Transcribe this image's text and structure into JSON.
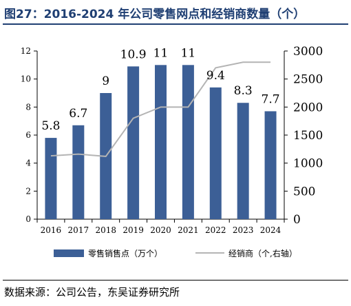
{
  "title": "图27：2016-2024 年公司零售网点和经销商数量（个）",
  "source": "数据来源：公司公告，东吴证券研究所",
  "chart_data": {
    "type": "bar",
    "categories": [
      "2016",
      "2017",
      "2018",
      "2019",
      "2020",
      "2021",
      "2022",
      "2023",
      "2024"
    ],
    "series": [
      {
        "name": "零售销售点（万个）",
        "type": "bar",
        "axis": "left",
        "values": [
          5.8,
          6.7,
          9,
          10.9,
          11,
          11,
          9.4,
          8.3,
          7.7
        ],
        "labels": [
          "5.8",
          "6.7",
          "9",
          "10.9",
          "11",
          "11",
          "9.4",
          "8.3",
          "7.7"
        ],
        "color": "#3c5f96"
      },
      {
        "name": "经销商（个,右轴）",
        "type": "line",
        "axis": "right",
        "values": [
          1130,
          1160,
          1120,
          1800,
          2000,
          2000,
          2700,
          2800,
          2800
        ],
        "color": "#b4b4b4"
      }
    ],
    "y_left": {
      "lim": [
        0,
        12
      ],
      "ticks": [
        0,
        2,
        4,
        6,
        8,
        10,
        12
      ]
    },
    "y_right": {
      "lim": [
        0,
        3000
      ],
      "ticks": [
        0,
        500,
        1000,
        1500,
        2000,
        2500,
        3000
      ]
    },
    "grid": false,
    "legend_position": "bottom"
  }
}
